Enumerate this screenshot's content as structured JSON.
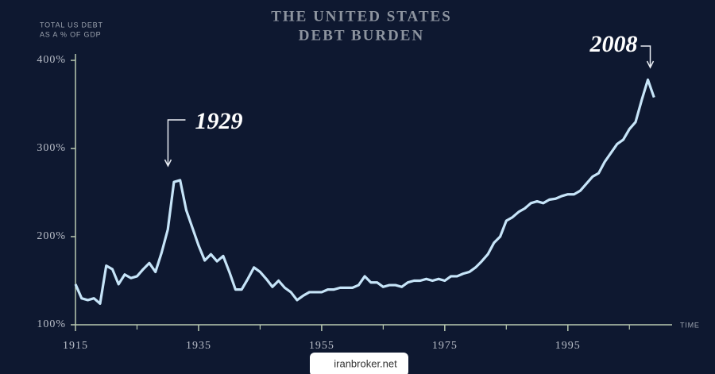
{
  "chart_data": {
    "type": "line",
    "title": [
      "THE UNITED STATES",
      "DEBT BURDEN"
    ],
    "y_label": [
      "TOTAL US DEBT",
      "AS A % OF GDP"
    ],
    "x_label": "TIME",
    "x": [
      1915,
      1916,
      1917,
      1918,
      1919,
      1920,
      1921,
      1922,
      1923,
      1924,
      1925,
      1926,
      1927,
      1928,
      1929,
      1930,
      1931,
      1932,
      1933,
      1934,
      1935,
      1936,
      1937,
      1938,
      1939,
      1940,
      1941,
      1942,
      1943,
      1944,
      1945,
      1946,
      1947,
      1948,
      1949,
      1950,
      1951,
      1952,
      1953,
      1954,
      1955,
      1956,
      1957,
      1958,
      1959,
      1960,
      1961,
      1962,
      1963,
      1964,
      1965,
      1966,
      1967,
      1968,
      1969,
      1970,
      1971,
      1972,
      1973,
      1974,
      1975,
      1976,
      1977,
      1978,
      1979,
      1980,
      1981,
      1982,
      1983,
      1984,
      1985,
      1986,
      1987,
      1988,
      1989,
      1990,
      1991,
      1992,
      1993,
      1994,
      1995,
      1996,
      1997,
      1998,
      1999,
      2000,
      2001,
      2002,
      2003,
      2004,
      2005,
      2006,
      2007,
      2008,
      2009
    ],
    "values": [
      146,
      130,
      128,
      130,
      124,
      167,
      163,
      146,
      157,
      153,
      155,
      163,
      170,
      160,
      182,
      208,
      262,
      264,
      230,
      210,
      190,
      173,
      180,
      172,
      178,
      160,
      140,
      140,
      152,
      165,
      160,
      152,
      143,
      150,
      142,
      137,
      128,
      133,
      137,
      137,
      137,
      140,
      140,
      142,
      142,
      142,
      145,
      155,
      148,
      148,
      143,
      145,
      145,
      143,
      148,
      150,
      150,
      152,
      150,
      152,
      150,
      155,
      155,
      158,
      160,
      165,
      172,
      180,
      193,
      200,
      218,
      222,
      228,
      232,
      238,
      240,
      238,
      242,
      243,
      246,
      248,
      248,
      252,
      260,
      268,
      272,
      285,
      295,
      305,
      310,
      322,
      330,
      355,
      378,
      358
    ],
    "color": "#c6e4f8",
    "xlim": [
      1915,
      2010
    ],
    "xticks": [
      1915,
      1935,
      1955,
      1975,
      1995
    ],
    "x_minor_ticks": [
      1925,
      1945,
      1965,
      1985,
      2005
    ],
    "ylim": [
      100,
      400
    ],
    "yticks": [
      {
        "value": 100,
        "label": "100%"
      },
      {
        "value": 200,
        "label": "200%"
      },
      {
        "value": 300,
        "label": "300%"
      },
      {
        "value": 400,
        "label": "400%"
      }
    ],
    "annotations": [
      {
        "text": "1929",
        "x": 1929
      },
      {
        "text": "2008",
        "x": 2008
      }
    ],
    "watermark": "iranbroker.net"
  }
}
